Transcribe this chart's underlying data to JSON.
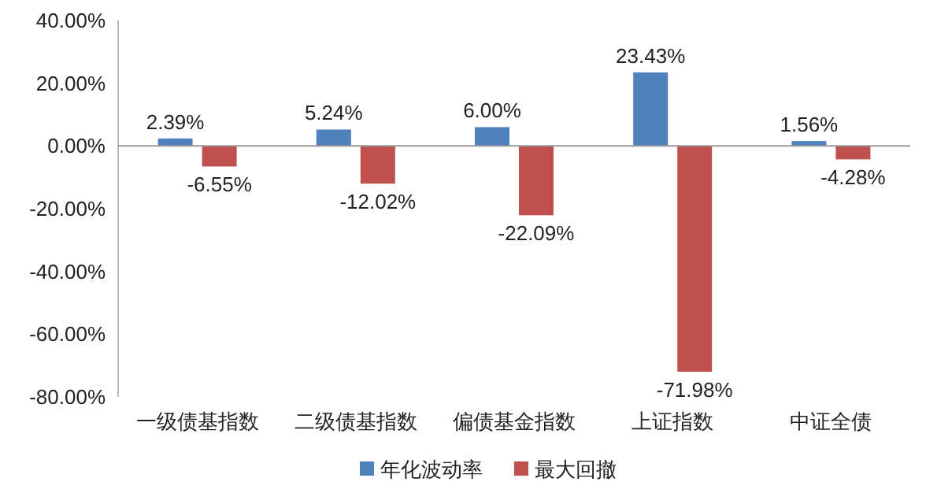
{
  "chart_data": {
    "type": "bar",
    "categories": [
      "一级债基指数",
      "二级债基指数",
      "偏债基金指数",
      "上证指数",
      "中证全债"
    ],
    "series": [
      {
        "name": "年化波动率",
        "color": "#4f81bd",
        "values": [
          2.39,
          5.24,
          6.0,
          23.43,
          1.56
        ],
        "value_labels": [
          "2.39%",
          "5.24%",
          "6.00%",
          "23.43%",
          "1.56%"
        ]
      },
      {
        "name": "最大回撤",
        "color": "#c0504d",
        "values": [
          -6.55,
          -12.02,
          -22.09,
          -71.98,
          -4.28
        ],
        "value_labels": [
          "-6.55%",
          "-12.02%",
          "-22.09%",
          "-71.98%",
          "-4.28%"
        ]
      }
    ],
    "ylim": [
      -80,
      40
    ],
    "yticks": [
      {
        "value": 40,
        "label": "40.00%"
      },
      {
        "value": 20,
        "label": "20.00%"
      },
      {
        "value": 0,
        "label": "0.00%"
      },
      {
        "value": -20,
        "label": "-20.00%"
      },
      {
        "value": -40,
        "label": "-40.00%"
      },
      {
        "value": -60,
        "label": "-60.00%"
      },
      {
        "value": -80,
        "label": "-80.00%"
      }
    ],
    "legend": "bottom"
  }
}
